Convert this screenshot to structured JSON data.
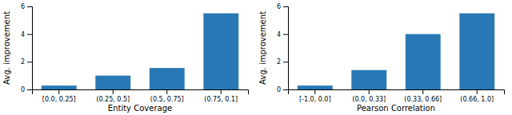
{
  "chart_data": [
    {
      "type": "bar",
      "categories": [
        "[0.0, 0.25]",
        "(0.25, 0.5]",
        "(0.5, 0.75]",
        "(0.75, 0.1]"
      ],
      "values": [
        0.28,
        1.0,
        1.55,
        5.5
      ],
      "xlabel": "Entity Coverage",
      "ylabel": "Avg. improvement",
      "color": "#2878b5",
      "ylim": [
        0,
        6
      ],
      "yticks": [
        0,
        2,
        4,
        6
      ]
    },
    {
      "type": "bar",
      "categories": [
        "[-1.0, 0.0]",
        "(0.0, 0.33]",
        "(0.33, 0.66]",
        "(0.66, 1.0]"
      ],
      "values": [
        0.28,
        1.4,
        4.0,
        5.5
      ],
      "xlabel": "Pearson Correlation",
      "ylabel": "Avg. improvement",
      "color": "#2878b5",
      "ylim": [
        0,
        6
      ],
      "yticks": [
        0,
        2,
        4,
        6
      ]
    }
  ]
}
